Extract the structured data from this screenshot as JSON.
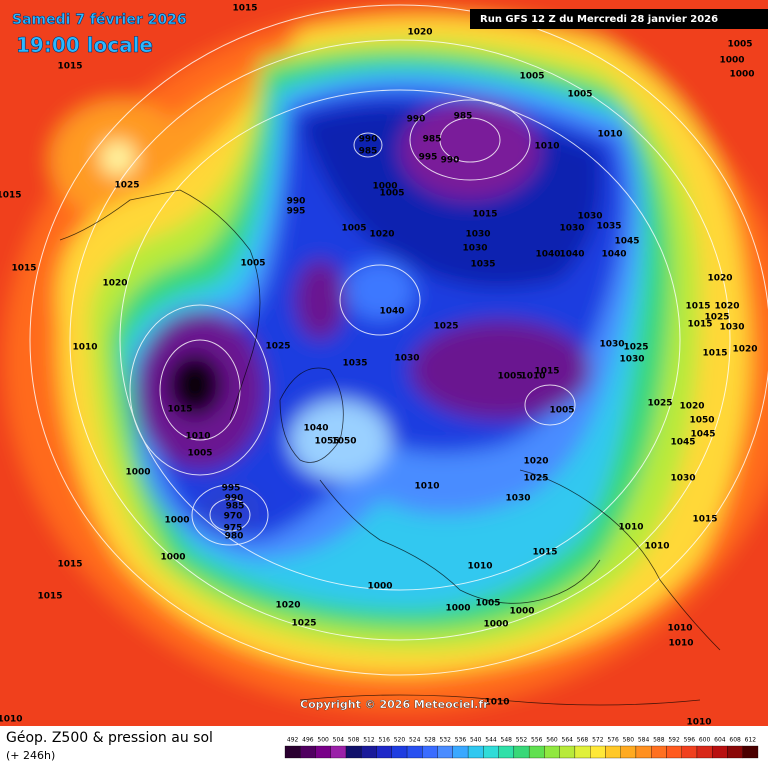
{
  "header": {
    "date": "Samedi 7 février 2026",
    "time": "19:00 locale",
    "run": "Run GFS 12 Z du Mercredi 28 janvier 2026"
  },
  "footer": {
    "title": "Géop. Z500 & pression au sol",
    "lead": "(+ 246h)",
    "copyright": "Copyright © 2026 Meteociel.fr"
  },
  "legend": {
    "levels": [
      492,
      496,
      500,
      504,
      508,
      512,
      516,
      520,
      524,
      528,
      532,
      536,
      540,
      544,
      548,
      552,
      556,
      560,
      564,
      568,
      572,
      576,
      580,
      584,
      588,
      592,
      596,
      600,
      604,
      608,
      612
    ]
  },
  "isobar_labels": [
    1015,
    1020,
    1015,
    1005,
    1005,
    1005,
    1000,
    1000,
    990,
    985,
    990,
    985,
    985,
    990,
    995,
    1010,
    1010,
    1025,
    1015,
    990,
    995,
    1000,
    1005,
    1005,
    1020,
    1015,
    1030,
    1030,
    1030,
    1035,
    1030,
    1035,
    1040,
    1040,
    1045,
    1040,
    1005,
    1015,
    1020,
    1020,
    1015,
    1020,
    1025,
    1030,
    1015,
    1040,
    1025,
    1025,
    1030,
    1035,
    1030,
    1025,
    1030,
    1015,
    1020,
    1010,
    1005,
    1010,
    1015,
    1005,
    1025,
    1020,
    1015,
    1010,
    1005,
    1040,
    1055,
    1050,
    1000,
    1010,
    1020,
    1025,
    1030,
    1030,
    1050,
    1045,
    1045,
    995,
    990,
    985,
    970,
    975,
    980,
    1000,
    1000,
    1015,
    1015,
    1020,
    1025,
    1015,
    1010,
    1000,
    1005,
    1000,
    1000,
    1000,
    1010,
    1010,
    1015,
    1010,
    1010,
    1010,
    1010,
    1010
  ]
}
